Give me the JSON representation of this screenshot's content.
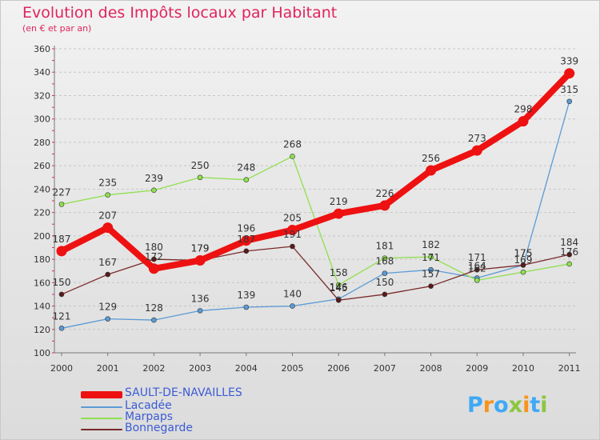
{
  "colors": {
    "title": "#e0245e",
    "axis_text": "#333333",
    "legend_text": "#3b5bd6"
  },
  "brand": {
    "letters": [
      "P",
      "r",
      "o",
      "x",
      "i",
      "t",
      "i"
    ],
    "colors": [
      "#3fa9f5",
      "#f7941d",
      "#3fa9f5",
      "#8dc63f",
      "#f7941d",
      "#3fa9f5",
      "#8dc63f"
    ]
  },
  "chart_data": {
    "type": "line",
    "title": "Evolution des Impôts locaux par Habitant",
    "subtitle": "(en € et par an)",
    "x": [
      "2000",
      "2001",
      "2002",
      "2003",
      "2004",
      "2005",
      "2006",
      "2007",
      "2008",
      "2009",
      "2010",
      "2011"
    ],
    "y_ticks": [
      "100",
      "120",
      "140",
      "160",
      "180",
      "200",
      "220",
      "240",
      "260",
      "280",
      "300",
      "320",
      "340",
      "360"
    ],
    "ylim": [
      100,
      360
    ],
    "grid": "horizontal dashed",
    "legend_position": "bottom-left",
    "series": [
      {
        "name": "SAULT-DE-NAVAILLES",
        "color": "#ee1111",
        "marker": "#ee1111",
        "thick": true,
        "values": [
          187,
          207,
          172,
          179,
          196,
          205,
          219,
          226,
          256,
          273,
          298,
          339
        ],
        "labels": [
          "187",
          "207",
          "172",
          "179",
          "196",
          "205",
          "219",
          "226",
          "256",
          "273",
          "298",
          "339"
        ]
      },
      {
        "name": "Lacadée",
        "color": "#5b9bd5",
        "marker": "#5b9bd5",
        "thick": false,
        "values": [
          121,
          129,
          128,
          136,
          139,
          140,
          146,
          168,
          171,
          164,
          175,
          315
        ],
        "labels": [
          "121",
          "129",
          "128",
          "136",
          "139",
          "140",
          "146",
          "168",
          "171",
          "164",
          "175",
          "315"
        ]
      },
      {
        "name": "Marpaps",
        "color": "#8fe04f",
        "marker": "#8fe04f",
        "thick": false,
        "values": [
          227,
          235,
          239,
          250,
          248,
          268,
          158,
          181,
          182,
          162,
          169,
          176
        ],
        "labels": [
          "227",
          "235",
          "239",
          "250",
          "248",
          "268",
          "158",
          "181",
          "182",
          "162",
          "169",
          "176"
        ]
      },
      {
        "name": "Bonnegarde",
        "color": "#7a2a2a",
        "marker": "#5a1a1a",
        "thick": false,
        "values": [
          150,
          167,
          180,
          179,
          187,
          191,
          145,
          150,
          157,
          171,
          175,
          184
        ],
        "labels": [
          "150",
          "167",
          "180",
          "179",
          "187",
          "191",
          "145",
          "150",
          "157",
          "171",
          "175",
          "184"
        ]
      }
    ]
  }
}
